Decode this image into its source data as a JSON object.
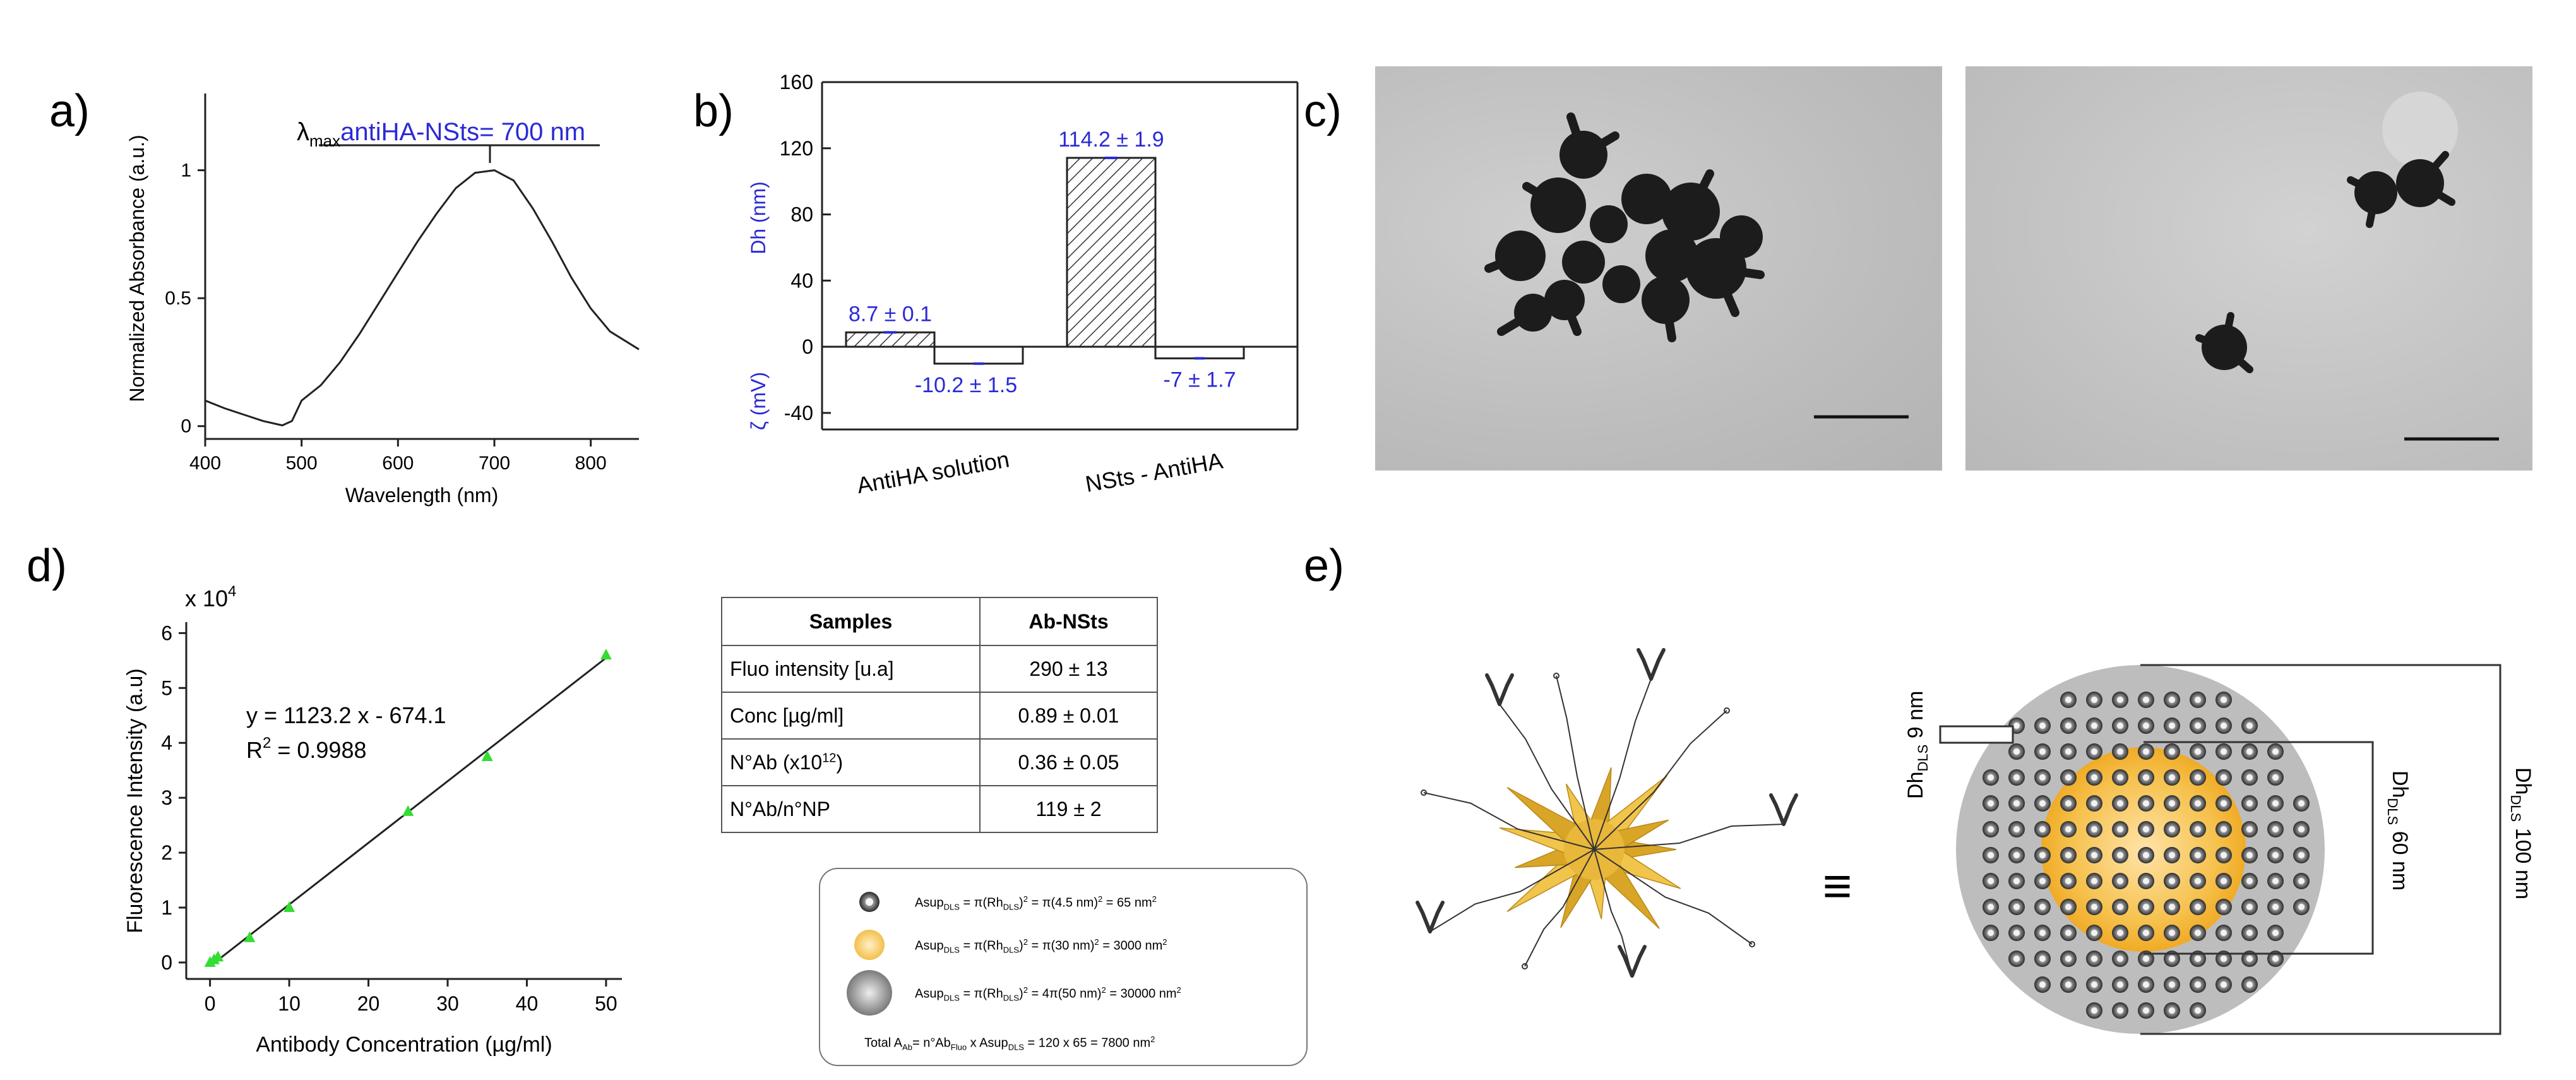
{
  "panel_labels": {
    "a": "a)",
    "b": "b)",
    "c": "c)",
    "d": "d)",
    "e": "e)"
  },
  "panel_a": {
    "annotation_lambda": "λ",
    "annotation_sub": "max",
    "annotation_blue": "antiHA-NSts",
    "annotation_value": "= 700 nm",
    "colors": {
      "annotation": "#2a2ad6",
      "line": "#222222"
    }
  },
  "panel_b": {
    "ylabel_top": "Dh (nm)",
    "ylabel_bottom": "ζ (mV)",
    "colors": {
      "label": "#2a2ad6"
    }
  },
  "panel_c": {
    "scale_bar": true
  },
  "panel_d": {
    "multiplier": "x 10",
    "multiplier_exp": "4",
    "equation": "y = 1123.2 x - 674.1",
    "r2_label": "R",
    "r2_exp": "2",
    "r2_value": " = 0.9988",
    "colors": {
      "points": "#33dd33",
      "line": "#222222"
    }
  },
  "table": {
    "headers": [
      "Samples",
      "Ab-NSts"
    ],
    "rows": [
      {
        "label": "Fluo intensity [u.a]",
        "value": "290 ± 13"
      },
      {
        "label": "Conc [µg/ml]",
        "value": "0.89 ± 0.01"
      },
      {
        "label_main": "N°Ab (x10",
        "label_sup": "12",
        "label_end": ")",
        "value": "0.36 ± 0.05"
      },
      {
        "label": "N°Ab/n°NP",
        "value": "119 ± 2"
      }
    ]
  },
  "legend": {
    "row1": {
      "a": "Asup",
      "s1": "DLS",
      "b": " = π(Rh",
      "s2": "DLS",
      "c": ")",
      "p": "2",
      "d": " = π(4.5 nm)",
      "p2": "2",
      "e": " = 65 nm",
      "p3": "2"
    },
    "row2": {
      "a": "Asup",
      "s1": "DLS",
      "b": " = π(Rh",
      "s2": "DLS",
      "c": ")",
      "p": "2",
      "d": " = π(30 nm)",
      "p2": "2",
      "e": " = 3000 nm",
      "p3": "2"
    },
    "row3": {
      "a": "Asup",
      "s1": "DLS",
      "b": " = π(Rh",
      "s2": "DLS",
      "c": ")",
      "p": "2",
      "d": " = 4π(50 nm)",
      "p2": "2",
      "e": " = 30000 nm",
      "p3": "2"
    },
    "total": {
      "a": "Total A",
      "s1": "Ab",
      "b": "= n°Ab",
      "s2": "Fluo",
      "c": " x Asup",
      "s3": "DLS",
      "d": " = 120 x 65 = 7800 nm",
      "p": "2"
    }
  },
  "panel_e": {
    "equiv": "≡",
    "dim_small_main": "Dh",
    "dim_small_sub": "DLS",
    "dim_small_val": " 9 nm",
    "dim_mid_main": "Dh",
    "dim_mid_sub": "DLS",
    "dim_mid_val": " 60 nm",
    "dim_large_main": "Dh",
    "dim_large_sub": "DLS",
    "dim_large_val": " 100 nm",
    "colors": {
      "star": "#e8b830",
      "core": "#f2b32e",
      "shell": "#b9b9b9"
    }
  },
  "chart_data": [
    {
      "type": "line",
      "xlabel": "Wavelength (nm)",
      "ylabel": "Normalized Absorbance (a.u.)",
      "xlim": [
        400,
        850
      ],
      "ylim": [
        -0.05,
        1.3
      ],
      "xticks": [
        "400",
        "500",
        "600",
        "700",
        "800"
      ],
      "yticks": [
        "0",
        "0.5",
        "1"
      ],
      "series": [
        {
          "x": [
            400,
            420,
            440,
            460,
            480,
            490,
            500,
            520,
            540,
            560,
            580,
            600,
            620,
            640,
            660,
            680,
            700,
            720,
            740,
            760,
            780,
            800,
            820,
            850
          ],
          "y": [
            0.1,
            0.07,
            0.045,
            0.02,
            0.003,
            0.02,
            0.1,
            0.16,
            0.25,
            0.36,
            0.48,
            0.6,
            0.72,
            0.83,
            0.93,
            0.99,
            1.0,
            0.96,
            0.85,
            0.72,
            0.58,
            0.46,
            0.37,
            0.3
          ]
        }
      ]
    },
    {
      "type": "bar",
      "categories": [
        "AntiHA solution",
        "NSts - AntiHA"
      ],
      "series": [
        {
          "name": "Dh (nm)",
          "values": [
            8.7,
            114.2
          ],
          "labels": [
            "8.7 ± 0.1",
            "114.2 ± 1.9"
          ]
        },
        {
          "name": "ζ (mV)",
          "values": [
            -10.2,
            -7
          ],
          "labels": [
            "-10.2 ± 1.5",
            "-7 ± 1.7"
          ]
        }
      ],
      "ylim": [
        -50,
        160
      ],
      "yticks": [
        "-40",
        "0",
        "40",
        "80",
        "120",
        "160"
      ]
    },
    {
      "type": "scatter",
      "xlabel": "Antibody Concentration (µg/ml)",
      "ylabel": "Fluorescence Intensity (a.u)",
      "xlim": [
        -3,
        52
      ],
      "ylim": [
        -0.3,
        6.2
      ],
      "xticks": [
        "0",
        "10",
        "20",
        "30",
        "40",
        "50"
      ],
      "yticks": [
        "0",
        "1",
        "2",
        "3",
        "4",
        "5",
        "6"
      ],
      "points": {
        "x": [
          0,
          0.5,
          1,
          5,
          10,
          25,
          35,
          50
        ],
        "y": [
          0.0,
          0.05,
          0.1,
          0.45,
          1.0,
          2.75,
          3.75,
          5.6
        ]
      },
      "fit": {
        "slope": 1123.2,
        "intercept": -674.1,
        "scale": 10000,
        "x": [
          0,
          50
        ]
      }
    }
  ]
}
